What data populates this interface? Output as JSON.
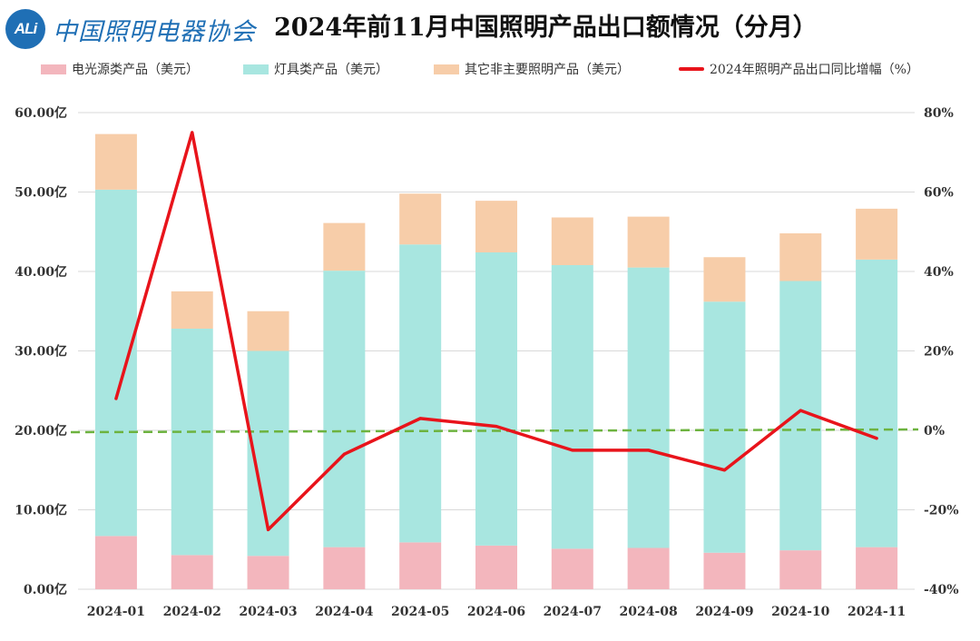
{
  "header": {
    "logo_badge": "ALi",
    "logo_text": "中国照明电器协会",
    "title": "2024年前11月中国照明产品出口额情况（分月）"
  },
  "colors": {
    "light_source": "#f3b6bd",
    "fixtures": "#a8e6e0",
    "other": "#f7cda9",
    "growth_line": "#e8141b",
    "zero_line": "#6db33f",
    "grid": "#d9d9d9",
    "logo": "#1f6fb5"
  },
  "chart_data": {
    "type": "bar",
    "stacked": true,
    "title": "2024年前11月中国照明产品出口额情况（分月）",
    "categories": [
      "2024-01",
      "2024-02",
      "2024-03",
      "2024-04",
      "2024-05",
      "2024-06",
      "2024-07",
      "2024-08",
      "2024-09",
      "2024-10",
      "2024-11"
    ],
    "series": [
      {
        "name": "电光源类产品（美元）",
        "axis": "left",
        "values": [
          6.7,
          4.3,
          4.2,
          5.3,
          5.9,
          5.5,
          5.1,
          5.2,
          4.6,
          4.9,
          5.3
        ]
      },
      {
        "name": "灯具类产品（美元）",
        "axis": "left",
        "values": [
          43.6,
          28.5,
          25.8,
          34.8,
          37.5,
          36.9,
          35.7,
          35.3,
          31.6,
          33.9,
          36.2
        ]
      },
      {
        "name": "其它非主要照明产品（美元）",
        "axis": "left",
        "values": [
          7.0,
          4.7,
          5.0,
          6.0,
          6.4,
          6.5,
          6.0,
          6.4,
          5.6,
          6.0,
          6.4
        ]
      },
      {
        "name": "2024年照明产品出口同比增幅（%）",
        "type": "line",
        "axis": "right",
        "values": [
          8,
          75,
          -25,
          -6,
          3,
          1,
          -5,
          -5,
          -10,
          5,
          -2
        ]
      }
    ],
    "y_left": {
      "lim": [
        0,
        60
      ],
      "ticks": [
        "0.00亿",
        "10.00亿",
        "20.00亿",
        "30.00亿",
        "40.00亿",
        "50.00亿",
        "60.00亿"
      ]
    },
    "y_right": {
      "lim": [
        -40,
        80
      ],
      "ticks": [
        "-40%",
        "-20%",
        "0%",
        "20%",
        "40%",
        "60%",
        "80%"
      ]
    },
    "reference_line": {
      "axis": "right",
      "value": 0,
      "style": "dashed"
    },
    "legend_position": "top"
  }
}
